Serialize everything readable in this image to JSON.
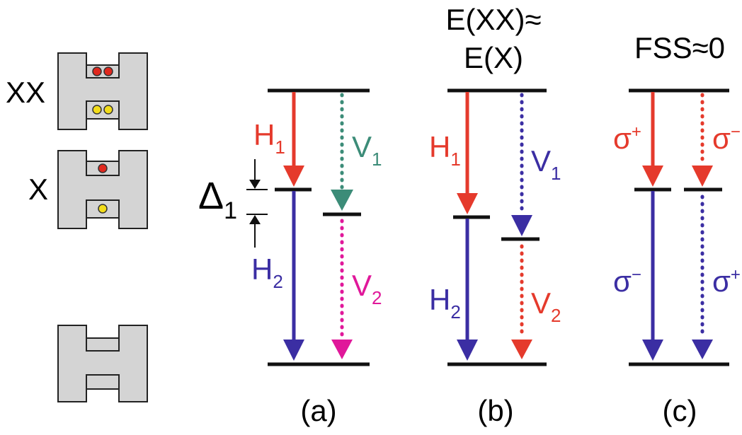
{
  "states": {
    "biexciton": "XX",
    "exciton": "X"
  },
  "panels": [
    {
      "label": "(a)",
      "splitting": {
        "symbol": "Δ",
        "sub": "1"
      },
      "transitions": [
        {
          "symbol": "H",
          "sub": "1"
        },
        {
          "symbol": "V",
          "sub": "1"
        },
        {
          "symbol": "H",
          "sub": "2"
        },
        {
          "symbol": "V",
          "sub": "2"
        }
      ]
    },
    {
      "label": "(b)",
      "title": [
        "E(XX)≈",
        "E(X)"
      ],
      "transitions": [
        {
          "symbol": "H",
          "sub": "1"
        },
        {
          "symbol": "V",
          "sub": "1"
        },
        {
          "symbol": "H",
          "sub": "2"
        },
        {
          "symbol": "V",
          "sub": "2"
        }
      ]
    },
    {
      "label": "(c)",
      "title": [
        "FSS≈0"
      ],
      "transitions": [
        {
          "symbol": "σ",
          "sub": "+"
        },
        {
          "symbol": "σ",
          "sub": "−"
        },
        {
          "symbol": "σ",
          "sub": "−"
        },
        {
          "symbol": "σ",
          "sub": "+"
        }
      ]
    }
  ]
}
